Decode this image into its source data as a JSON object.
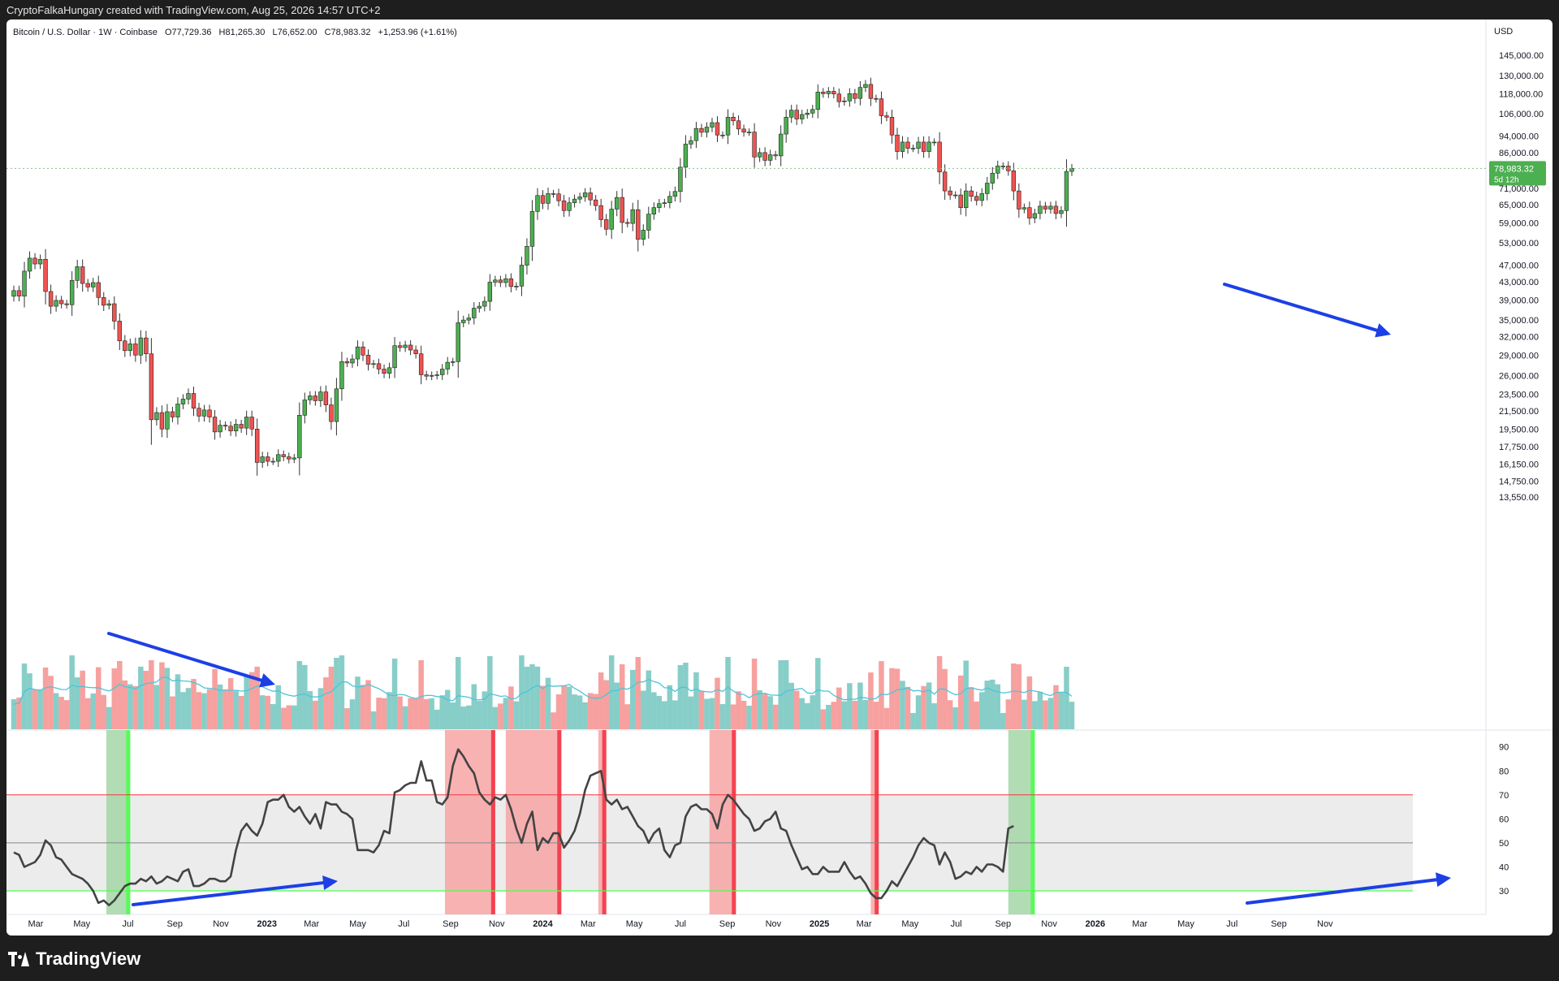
{
  "banner": "CryptoFalkaHungary created with TradingView.com, Aug 25, 2026 14:57 UTC+2",
  "legend": {
    "symbol": "Bitcoin / U.S. Dollar · 1W · Coinbase",
    "open": "O77,729.36",
    "high": "H81,265.30",
    "low": "L76,652.00",
    "close": "C78,983.32",
    "change": "+1,253.96 (+1.61%)"
  },
  "footer": {
    "brand": "TradingView"
  },
  "colors": {
    "up": "#4caf50",
    "down": "#ef5350",
    "vol_up": "#26a69a",
    "vol_down": "#ef5350",
    "arrow": "#1c3fe6",
    "price_tag": "#4caf50",
    "osc_line": "#434343",
    "osc_upper": "#f23645",
    "osc_lower": "#4cff4c"
  },
  "chart_data": [
    {
      "type": "candlestick",
      "title": "Bitcoin / U.S. Dollar · 1W · Coinbase",
      "currency_label": "USD",
      "y_scale": "log",
      "y_ticks": [
        "145,000.00",
        "130,000.00",
        "118,000.00",
        "106,000.00",
        "94,000.00",
        "86,000.00",
        "71,000.00",
        "65,000.00",
        "59,000.00",
        "53,000.00",
        "47,000.00",
        "43,000.00",
        "39,000.00",
        "35,000.00",
        "32,000.00",
        "29,000.00",
        "26,000.00",
        "23,500.00",
        "21,500.00",
        "19,500.00",
        "17,750.00",
        "16,150.00",
        "14,750.00",
        "13,550.00"
      ],
      "x_ticks": [
        {
          "label": "Mar",
          "date": "2022-03-01"
        },
        {
          "label": "May",
          "date": "2022-05-01"
        },
        {
          "label": "Jul",
          "date": "2022-07-01"
        },
        {
          "label": "Sep",
          "date": "2022-09-01"
        },
        {
          "label": "Nov",
          "date": "2022-11-01"
        },
        {
          "label": "2023",
          "date": "2023-01-01"
        },
        {
          "label": "Mar",
          "date": "2023-03-01"
        },
        {
          "label": "May",
          "date": "2023-05-01"
        },
        {
          "label": "Jul",
          "date": "2023-07-01"
        },
        {
          "label": "Sep",
          "date": "2023-09-01"
        },
        {
          "label": "Nov",
          "date": "2023-11-01"
        },
        {
          "label": "2024",
          "date": "2024-01-01"
        },
        {
          "label": "Mar",
          "date": "2024-03-01"
        },
        {
          "label": "May",
          "date": "2024-05-01"
        },
        {
          "label": "Jul",
          "date": "2024-07-01"
        },
        {
          "label": "Sep",
          "date": "2024-09-01"
        },
        {
          "label": "Nov",
          "date": "2024-11-01"
        },
        {
          "label": "2025",
          "date": "2025-01-01"
        },
        {
          "label": "Mar",
          "date": "2025-03-01"
        },
        {
          "label": "May",
          "date": "2025-05-01"
        },
        {
          "label": "Jul",
          "date": "2025-07-01"
        },
        {
          "label": "Sep",
          "date": "2025-09-01"
        },
        {
          "label": "Nov",
          "date": "2025-11-01"
        },
        {
          "label": "2026",
          "date": "2026-01-01"
        },
        {
          "label": "Mar",
          "date": "2026-03-01"
        },
        {
          "label": "May",
          "date": "2026-05-01"
        },
        {
          "label": "Jul",
          "date": "2026-07-01"
        },
        {
          "label": "Sep",
          "date": "2026-09-01"
        },
        {
          "label": "Nov",
          "date": "2026-11-01"
        }
      ],
      "bold_x_ticks": [
        "2023",
        "2024",
        "2025",
        "2026"
      ],
      "first_week": "2022-01-31",
      "closes": [
        41000,
        39800,
        45500,
        48800,
        47300,
        48500,
        40800,
        37700,
        38900,
        38200,
        38000,
        43300,
        46600,
        42600,
        41800,
        42800,
        39500,
        37900,
        38200,
        34800,
        31300,
        29700,
        30800,
        29000,
        31800,
        29200,
        20500,
        21300,
        19500,
        21400,
        20800,
        22300,
        22900,
        23600,
        21800,
        20900,
        21600,
        20800,
        19200,
        19900,
        19800,
        19300,
        20000,
        19600,
        20800,
        19500,
        16300,
        16800,
        16400,
        16400,
        17000,
        16800,
        16600,
        16700,
        21000,
        22800,
        23300,
        22700,
        23800,
        22200,
        20300,
        24200,
        28000,
        27800,
        28400,
        30300,
        29000,
        27600,
        27700,
        26900,
        26300,
        27100,
        30500,
        30200,
        30600,
        29800,
        29200,
        26100,
        25900,
        26000,
        26100,
        26900,
        27900,
        28000,
        34500,
        35000,
        35400,
        37300,
        37700,
        38700,
        42900,
        43400,
        42800,
        43700,
        41900,
        42000,
        47000,
        52000,
        62700,
        68300,
        65500,
        69000,
        68900,
        66400,
        63000,
        65700,
        67000,
        67800,
        69300,
        66700,
        64700,
        60000,
        57000,
        63500,
        67600,
        59100,
        58800,
        63300,
        54000,
        56700,
        61800,
        64000,
        65400,
        65700,
        68000,
        69800,
        79500,
        90000,
        91700,
        97900,
        95900,
        98600,
        101000,
        94500,
        94500,
        104000,
        102000,
        97600,
        96000,
        96000,
        84000,
        86000,
        82500,
        85000,
        84500,
        95000,
        104000,
        108000,
        103000,
        105500,
        106300,
        108400,
        119000,
        118000,
        119500,
        117800,
        113000,
        113500,
        118000,
        115000,
        122000,
        124000,
        115000,
        114800,
        104800,
        104000,
        94500,
        86500,
        91000,
        88000,
        88000,
        91000,
        86500,
        91000,
        91000,
        77500,
        70000,
        68500,
        68500,
        64000,
        70000,
        68000,
        66500,
        69000,
        73000,
        77000,
        80000,
        80000,
        78000,
        70000,
        63500,
        64000,
        60500,
        62000,
        64500,
        63500,
        64500,
        62000,
        63000,
        77729,
        78983
      ],
      "volume_ma_note": "moving average line over volume",
      "oscillator": {
        "type": "line",
        "y_ticks": [
          90,
          80,
          70,
          60,
          50,
          40,
          30
        ],
        "upper_band": 70,
        "mid": 50,
        "lower_band": 30,
        "values": [
          46,
          45,
          40,
          41,
          42,
          45,
          51,
          49,
          44,
          43,
          40,
          37,
          36,
          35,
          33,
          30,
          25,
          26,
          24,
          26,
          29,
          32,
          33,
          33,
          35,
          34,
          36,
          33,
          34,
          36,
          35,
          34,
          38,
          39,
          32,
          32,
          33,
          35,
          35,
          34,
          34,
          36,
          47,
          55,
          58,
          55,
          53,
          58,
          67,
          68,
          68,
          70,
          65,
          63,
          65,
          61,
          58,
          62,
          56,
          67,
          66,
          66,
          63,
          62,
          60,
          47,
          47,
          47,
          46,
          49,
          55,
          54,
          71,
          72,
          74,
          75,
          75,
          84,
          76,
          76,
          67,
          66,
          69,
          82,
          89,
          86,
          82,
          79,
          71,
          68,
          66,
          69,
          68,
          70,
          64,
          56,
          50,
          58,
          63,
          47,
          52,
          50,
          54,
          54,
          48,
          51,
          55,
          62,
          72,
          78,
          79,
          80,
          68,
          66,
          68,
          64,
          65,
          61,
          57,
          55,
          50,
          54,
          56,
          47,
          44,
          49,
          50,
          61,
          65,
          66,
          64,
          64,
          62,
          56,
          66,
          70,
          68,
          65,
          62,
          60,
          55,
          56,
          59,
          60,
          63,
          56,
          55,
          49,
          44,
          39,
          40,
          37,
          37,
          40,
          38,
          38,
          38,
          42,
          38,
          35,
          36,
          33,
          29,
          27,
          27,
          30,
          34,
          32,
          36,
          40,
          44,
          49,
          52,
          50,
          49,
          41,
          46,
          42,
          35,
          36,
          38,
          37,
          40,
          38,
          41,
          41,
          40,
          38,
          56,
          57
        ]
      },
      "price_tag": {
        "value": "78,983.32",
        "countdown": "5d 12h"
      }
    }
  ]
}
